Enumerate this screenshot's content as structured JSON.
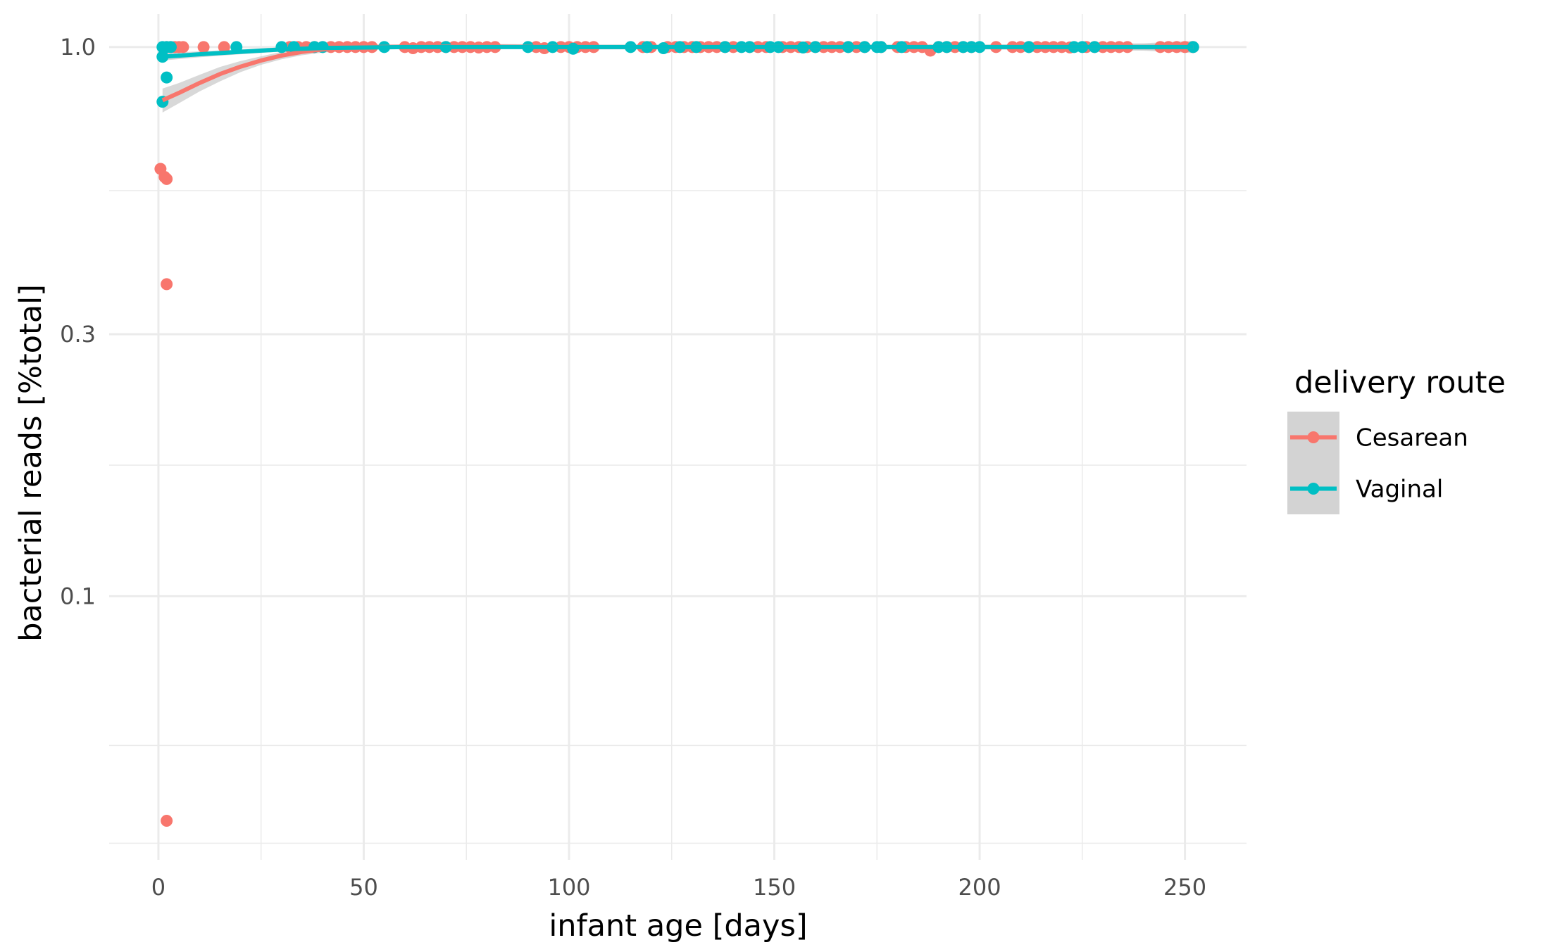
{
  "chart_data": {
    "type": "scatter",
    "title": "",
    "xlabel": "infant age [days]",
    "ylabel": "bacterial reads [%total]",
    "xlim": [
      -12,
      265
    ],
    "ylim_log10": [
      -1.48,
      0.06
    ],
    "y_scale": "log10",
    "x_ticks": [
      0,
      50,
      100,
      150,
      200,
      250
    ],
    "x_tick_labels": [
      "0",
      "50",
      "100",
      "150",
      "200",
      "250"
    ],
    "y_ticks": [
      0.1,
      0.3,
      1.0
    ],
    "y_tick_labels": [
      "0.1",
      "0.3",
      "1.0"
    ],
    "grid": true,
    "legend": {
      "title": "delivery route",
      "position": "right",
      "entries": [
        "Cesarean",
        "Vaginal"
      ]
    },
    "smooth": {
      "method": "loess",
      "confidence_band": true,
      "band_color": "#BEBEBE"
    },
    "series": [
      {
        "name": "Cesarean",
        "color": "#F8766D",
        "points": [
          [
            0.5,
            0.6
          ],
          [
            1.5,
            0.58
          ],
          [
            2,
            0.575
          ],
          [
            2,
            0.37
          ],
          [
            2,
            0.039
          ],
          [
            2,
            1.0
          ],
          [
            3,
            1.0
          ],
          [
            4,
            1.0
          ],
          [
            5,
            1.0
          ],
          [
            6,
            1.0
          ],
          [
            11,
            1.0
          ],
          [
            16,
            1.0
          ],
          [
            32,
            1.0
          ],
          [
            34,
            1.0
          ],
          [
            36,
            1.0
          ],
          [
            38,
            1.0
          ],
          [
            40,
            1.0
          ],
          [
            42,
            1.0
          ],
          [
            44,
            1.0
          ],
          [
            46,
            1.0
          ],
          [
            48,
            1.0
          ],
          [
            50,
            1.0
          ],
          [
            52,
            1.0
          ],
          [
            60,
            1.0
          ],
          [
            62,
            0.995
          ],
          [
            64,
            1.0
          ],
          [
            66,
            1.0
          ],
          [
            68,
            1.0
          ],
          [
            70,
            1.0
          ],
          [
            72,
            1.0
          ],
          [
            74,
            1.0
          ],
          [
            76,
            1.0
          ],
          [
            78,
            0.998
          ],
          [
            80,
            1.0
          ],
          [
            82,
            1.0
          ],
          [
            92,
            1.0
          ],
          [
            94,
            0.995
          ],
          [
            98,
            1.0
          ],
          [
            100,
            1.0
          ],
          [
            102,
            1.0
          ],
          [
            104,
            1.0
          ],
          [
            106,
            1.0
          ],
          [
            118,
            1.0
          ],
          [
            120,
            1.0
          ],
          [
            124,
            1.0
          ],
          [
            126,
            1.0
          ],
          [
            128,
            1.0
          ],
          [
            130,
            1.0
          ],
          [
            132,
            1.0
          ],
          [
            134,
            1.0
          ],
          [
            136,
            1.0
          ],
          [
            138,
            1.0
          ],
          [
            140,
            1.0
          ],
          [
            144,
            1.0
          ],
          [
            146,
            1.0
          ],
          [
            148,
            1.0
          ],
          [
            152,
            1.0
          ],
          [
            154,
            1.0
          ],
          [
            156,
            1.0
          ],
          [
            158,
            1.0
          ],
          [
            160,
            1.0
          ],
          [
            162,
            1.0
          ],
          [
            164,
            1.0
          ],
          [
            166,
            1.0
          ],
          [
            168,
            1.0
          ],
          [
            170,
            1.0
          ],
          [
            172,
            1.0
          ],
          [
            176,
            1.0
          ],
          [
            180,
            1.0
          ],
          [
            182,
            1.0
          ],
          [
            184,
            1.0
          ],
          [
            186,
            1.0
          ],
          [
            188,
            0.985
          ],
          [
            190,
            1.0
          ],
          [
            192,
            1.0
          ],
          [
            194,
            1.0
          ],
          [
            196,
            1.0
          ],
          [
            198,
            1.0
          ],
          [
            204,
            1.0
          ],
          [
            208,
            1.0
          ],
          [
            210,
            1.0
          ],
          [
            212,
            1.0
          ],
          [
            214,
            1.0
          ],
          [
            216,
            1.0
          ],
          [
            218,
            1.0
          ],
          [
            220,
            1.0
          ],
          [
            222,
            0.998
          ],
          [
            226,
            1.0
          ],
          [
            228,
            1.0
          ],
          [
            230,
            1.0
          ],
          [
            232,
            1.0
          ],
          [
            234,
            1.0
          ],
          [
            236,
            1.0
          ],
          [
            244,
            1.0
          ],
          [
            246,
            1.0
          ],
          [
            248,
            1.0
          ],
          [
            250,
            1.0
          ],
          [
            252,
            1.0
          ]
        ],
        "smooth_line": [
          [
            1,
            0.8
          ],
          [
            5,
            0.825
          ],
          [
            10,
            0.86
          ],
          [
            15,
            0.893
          ],
          [
            20,
            0.921
          ],
          [
            25,
            0.945
          ],
          [
            30,
            0.965
          ],
          [
            35,
            0.98
          ],
          [
            40,
            0.99
          ],
          [
            50,
            1.0
          ],
          [
            75,
            1.002
          ],
          [
            100,
            1.0
          ],
          [
            150,
            1.0
          ],
          [
            200,
            1.0
          ],
          [
            252,
            1.0
          ]
        ],
        "band_lower": [
          [
            1,
            0.76
          ],
          [
            5,
            0.79
          ],
          [
            10,
            0.83
          ],
          [
            15,
            0.866
          ],
          [
            20,
            0.9
          ],
          [
            25,
            0.928
          ],
          [
            30,
            0.95
          ],
          [
            35,
            0.966
          ],
          [
            40,
            0.977
          ],
          [
            50,
            0.99
          ],
          [
            75,
            0.993
          ],
          [
            100,
            0.99
          ],
          [
            150,
            0.991
          ],
          [
            200,
            0.99
          ],
          [
            240,
            0.985
          ],
          [
            252,
            0.975
          ]
        ],
        "band_upper": [
          [
            1,
            0.84
          ],
          [
            5,
            0.86
          ],
          [
            10,
            0.89
          ],
          [
            15,
            0.92
          ],
          [
            20,
            0.943
          ],
          [
            25,
            0.962
          ],
          [
            30,
            0.98
          ],
          [
            35,
            0.994
          ],
          [
            40,
            1.003
          ],
          [
            50,
            1.01
          ],
          [
            75,
            1.014
          ],
          [
            100,
            1.01
          ],
          [
            150,
            1.009
          ],
          [
            200,
            1.01
          ],
          [
            240,
            1.016
          ],
          [
            252,
            1.026
          ]
        ]
      },
      {
        "name": "Vaginal",
        "color": "#00BFC4",
        "points": [
          [
            1,
            0.795
          ],
          [
            1,
            0.96
          ],
          [
            1,
            1.0
          ],
          [
            2,
            0.88
          ],
          [
            2,
            1.0
          ],
          [
            3,
            1.0
          ],
          [
            19,
            1.0
          ],
          [
            30,
            1.0
          ],
          [
            33,
            1.0
          ],
          [
            38,
            1.0
          ],
          [
            40,
            1.0
          ],
          [
            55,
            1.0
          ],
          [
            70,
            1.0
          ],
          [
            90,
            1.0
          ],
          [
            96,
            1.0
          ],
          [
            101,
            0.993
          ],
          [
            115,
            1.0
          ],
          [
            119,
            1.0
          ],
          [
            123,
            0.995
          ],
          [
            127,
            1.0
          ],
          [
            131,
            1.0
          ],
          [
            138,
            1.0
          ],
          [
            142,
            1.0
          ],
          [
            144,
            1.0
          ],
          [
            149,
            1.0
          ],
          [
            151,
            1.0
          ],
          [
            157,
            0.998
          ],
          [
            160,
            1.0
          ],
          [
            168,
            1.0
          ],
          [
            172,
            1.0
          ],
          [
            175,
            1.0
          ],
          [
            176,
            1.0
          ],
          [
            181,
            1.0
          ],
          [
            190,
            1.0
          ],
          [
            192,
            1.0
          ],
          [
            196,
            1.0
          ],
          [
            198,
            1.0
          ],
          [
            200,
            1.0
          ],
          [
            212,
            1.0
          ],
          [
            223,
            1.0
          ],
          [
            225,
            1.0
          ],
          [
            228,
            1.0
          ],
          [
            252,
            1.0
          ]
        ],
        "smooth_line": [
          [
            1,
            0.96
          ],
          [
            10,
            0.97
          ],
          [
            20,
            0.98
          ],
          [
            30,
            0.99
          ],
          [
            40,
            0.996
          ],
          [
            60,
            1.0
          ],
          [
            100,
            1.0
          ],
          [
            150,
            1.0
          ],
          [
            200,
            1.0
          ],
          [
            252,
            1.0
          ]
        ],
        "band_lower": [
          [
            1,
            0.945
          ],
          [
            10,
            0.958
          ],
          [
            20,
            0.97
          ],
          [
            30,
            0.981
          ],
          [
            40,
            0.988
          ],
          [
            60,
            0.993
          ],
          [
            100,
            0.994
          ],
          [
            150,
            0.994
          ],
          [
            200,
            0.993
          ],
          [
            240,
            0.988
          ],
          [
            252,
            0.982
          ]
        ],
        "band_upper": [
          [
            1,
            0.975
          ],
          [
            10,
            0.982
          ],
          [
            20,
            0.99
          ],
          [
            30,
            0.999
          ],
          [
            40,
            1.004
          ],
          [
            60,
            1.007
          ],
          [
            100,
            1.006
          ],
          [
            150,
            1.006
          ],
          [
            200,
            1.007
          ],
          [
            240,
            1.012
          ],
          [
            252,
            1.018
          ]
        ]
      }
    ]
  }
}
